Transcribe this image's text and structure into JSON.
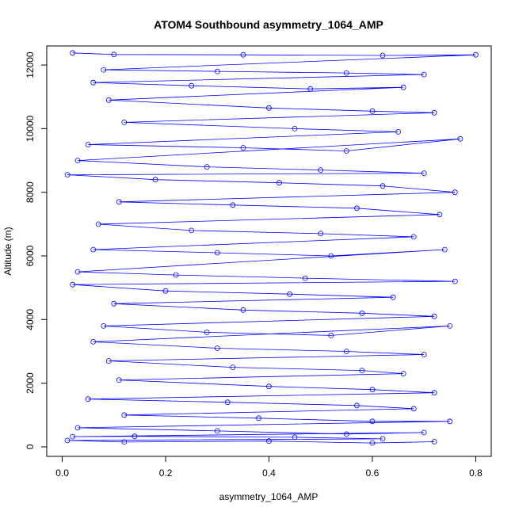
{
  "colors": {
    "series": "#0000ff",
    "axis": "#000000",
    "background": "#ffffff"
  },
  "chart_data": {
    "type": "scatter",
    "subtype": "points connected by lines",
    "title": "ATOM4 Southbound asymmetry_1064_AMP",
    "xlabel": "asymmetry_1064_AMP",
    "ylabel": "Altitude (m)",
    "xlim": [
      -0.03,
      0.83
    ],
    "ylim": [
      -300,
      12600
    ],
    "xticks": [
      0.0,
      0.2,
      0.4,
      0.6,
      0.8
    ],
    "xtick_labels": [
      "0.0",
      "0.2",
      "0.4",
      "0.6",
      "0.8"
    ],
    "yticks": [
      0,
      2000,
      4000,
      6000,
      8000,
      10000,
      12000
    ],
    "ytick_labels": [
      "0",
      "2000",
      "4000",
      "6000",
      "8000",
      "10000",
      "12000"
    ],
    "grid": false,
    "marker": "open circle",
    "series": [
      {
        "points": [
          [
            0.02,
            12380
          ],
          [
            0.1,
            12330
          ],
          [
            0.35,
            12320
          ],
          [
            0.62,
            12300
          ],
          [
            0.8,
            12320
          ],
          [
            0.08,
            11850
          ],
          [
            0.3,
            11800
          ],
          [
            0.55,
            11750
          ],
          [
            0.7,
            11700
          ],
          [
            0.06,
            11450
          ],
          [
            0.25,
            11350
          ],
          [
            0.48,
            11250
          ],
          [
            0.66,
            11300
          ],
          [
            0.09,
            10900
          ],
          [
            0.4,
            10650
          ],
          [
            0.6,
            10550
          ],
          [
            0.72,
            10500
          ],
          [
            0.12,
            10200
          ],
          [
            0.45,
            10000
          ],
          [
            0.65,
            9900
          ],
          [
            0.05,
            9500
          ],
          [
            0.35,
            9400
          ],
          [
            0.55,
            9300
          ],
          [
            0.77,
            9680
          ],
          [
            0.03,
            9000
          ],
          [
            0.28,
            8800
          ],
          [
            0.5,
            8700
          ],
          [
            0.7,
            8600
          ],
          [
            0.01,
            8550
          ],
          [
            0.18,
            8400
          ],
          [
            0.42,
            8300
          ],
          [
            0.62,
            8200
          ],
          [
            0.76,
            8000
          ],
          [
            0.11,
            7700
          ],
          [
            0.33,
            7600
          ],
          [
            0.57,
            7500
          ],
          [
            0.73,
            7300
          ],
          [
            0.07,
            7000
          ],
          [
            0.25,
            6800
          ],
          [
            0.5,
            6700
          ],
          [
            0.68,
            6600
          ],
          [
            0.06,
            6200
          ],
          [
            0.3,
            6100
          ],
          [
            0.52,
            6000
          ],
          [
            0.74,
            6200
          ],
          [
            0.03,
            5500
          ],
          [
            0.22,
            5400
          ],
          [
            0.47,
            5300
          ],
          [
            0.76,
            5200
          ],
          [
            0.02,
            5100
          ],
          [
            0.2,
            4900
          ],
          [
            0.44,
            4800
          ],
          [
            0.64,
            4700
          ],
          [
            0.1,
            4500
          ],
          [
            0.35,
            4300
          ],
          [
            0.58,
            4200
          ],
          [
            0.72,
            4100
          ],
          [
            0.08,
            3800
          ],
          [
            0.28,
            3600
          ],
          [
            0.52,
            3500
          ],
          [
            0.75,
            3800
          ],
          [
            0.06,
            3300
          ],
          [
            0.3,
            3100
          ],
          [
            0.55,
            3000
          ],
          [
            0.7,
            2900
          ],
          [
            0.09,
            2700
          ],
          [
            0.33,
            2500
          ],
          [
            0.58,
            2400
          ],
          [
            0.66,
            2300
          ],
          [
            0.11,
            2100
          ],
          [
            0.4,
            1900
          ],
          [
            0.6,
            1800
          ],
          [
            0.72,
            1700
          ],
          [
            0.05,
            1500
          ],
          [
            0.32,
            1400
          ],
          [
            0.57,
            1300
          ],
          [
            0.68,
            1200
          ],
          [
            0.12,
            1000
          ],
          [
            0.38,
            900
          ],
          [
            0.6,
            800
          ],
          [
            0.75,
            800
          ],
          [
            0.03,
            600
          ],
          [
            0.3,
            500
          ],
          [
            0.55,
            400
          ],
          [
            0.7,
            450
          ],
          [
            0.02,
            320
          ],
          [
            0.14,
            330
          ],
          [
            0.45,
            300
          ],
          [
            0.62,
            250
          ],
          [
            0.01,
            200
          ],
          [
            0.12,
            150
          ],
          [
            0.4,
            180
          ],
          [
            0.6,
            120
          ],
          [
            0.72,
            160
          ]
        ]
      }
    ]
  }
}
